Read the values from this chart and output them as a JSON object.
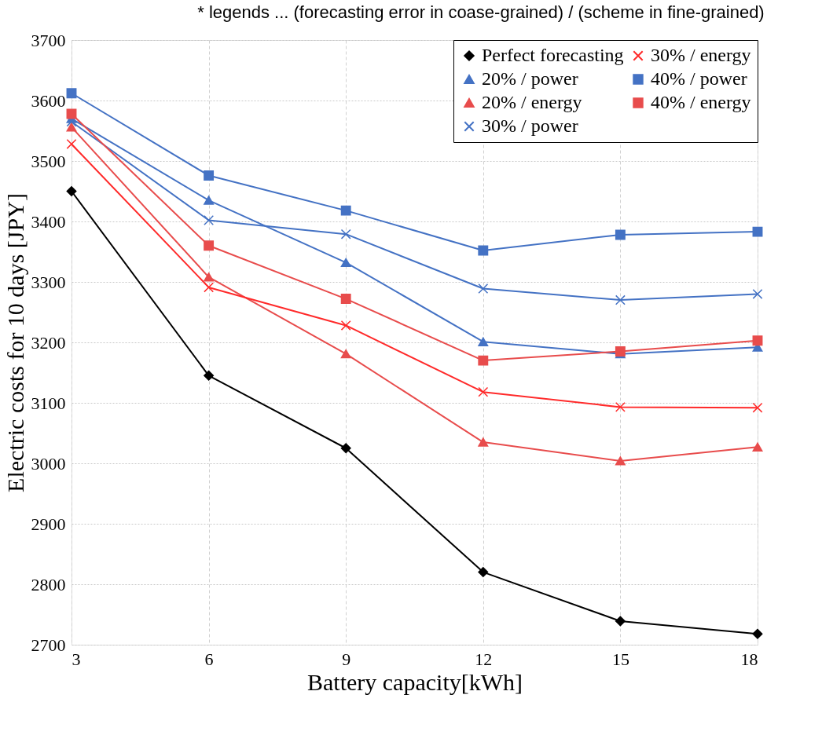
{
  "chart_data": {
    "type": "line",
    "title": "* legends ... (forecasting error in coase-grained) / (scheme in fine-grained)",
    "xlabel": "Battery capacity[kWh]",
    "ylabel": "Electric costs for 10 days [JPY]",
    "x": [
      3,
      6,
      9,
      12,
      15,
      18
    ],
    "series": [
      {
        "name": "Perfect forecasting",
        "color": "#000000",
        "marker": "diamond",
        "values": [
          3450,
          3145,
          3025,
          2820,
          2739,
          2718
        ]
      },
      {
        "name": "20% / power",
        "color": "#4472c4",
        "marker": "triangle",
        "values": [
          3570,
          3435,
          3332,
          3201,
          3181,
          3192
        ]
      },
      {
        "name": "20% / energy",
        "color": "#e84c4c",
        "marker": "triangle",
        "values": [
          3556,
          3308,
          3181,
          3035,
          3004,
          3027
        ]
      },
      {
        "name": "30% / power",
        "color": "#4472c4",
        "marker": "cross",
        "values": [
          3565,
          3402,
          3379,
          3289,
          3270,
          3280
        ]
      },
      {
        "name": "30% / energy",
        "color": "#ff2a2a",
        "marker": "cross",
        "values": [
          3528,
          3291,
          3228,
          3118,
          3093,
          3092
        ]
      },
      {
        "name": "40% / power",
        "color": "#4472c4",
        "marker": "square",
        "values": [
          3612,
          3476,
          3418,
          3352,
          3378,
          3383
        ]
      },
      {
        "name": "40% / energy",
        "color": "#e84c4c",
        "marker": "square",
        "values": [
          3578,
          3360,
          3272,
          3170,
          3185,
          3203
        ]
      }
    ],
    "xlim": [
      3,
      18
    ],
    "xticks": [
      3,
      6,
      9,
      12,
      15,
      18
    ],
    "ylim": [
      2700,
      3700
    ],
    "yticks": [
      2700,
      2800,
      2900,
      3000,
      3100,
      3200,
      3300,
      3400,
      3500,
      3600,
      3700
    ],
    "grid": true,
    "legend": "top right",
    "line_style": "solid"
  }
}
